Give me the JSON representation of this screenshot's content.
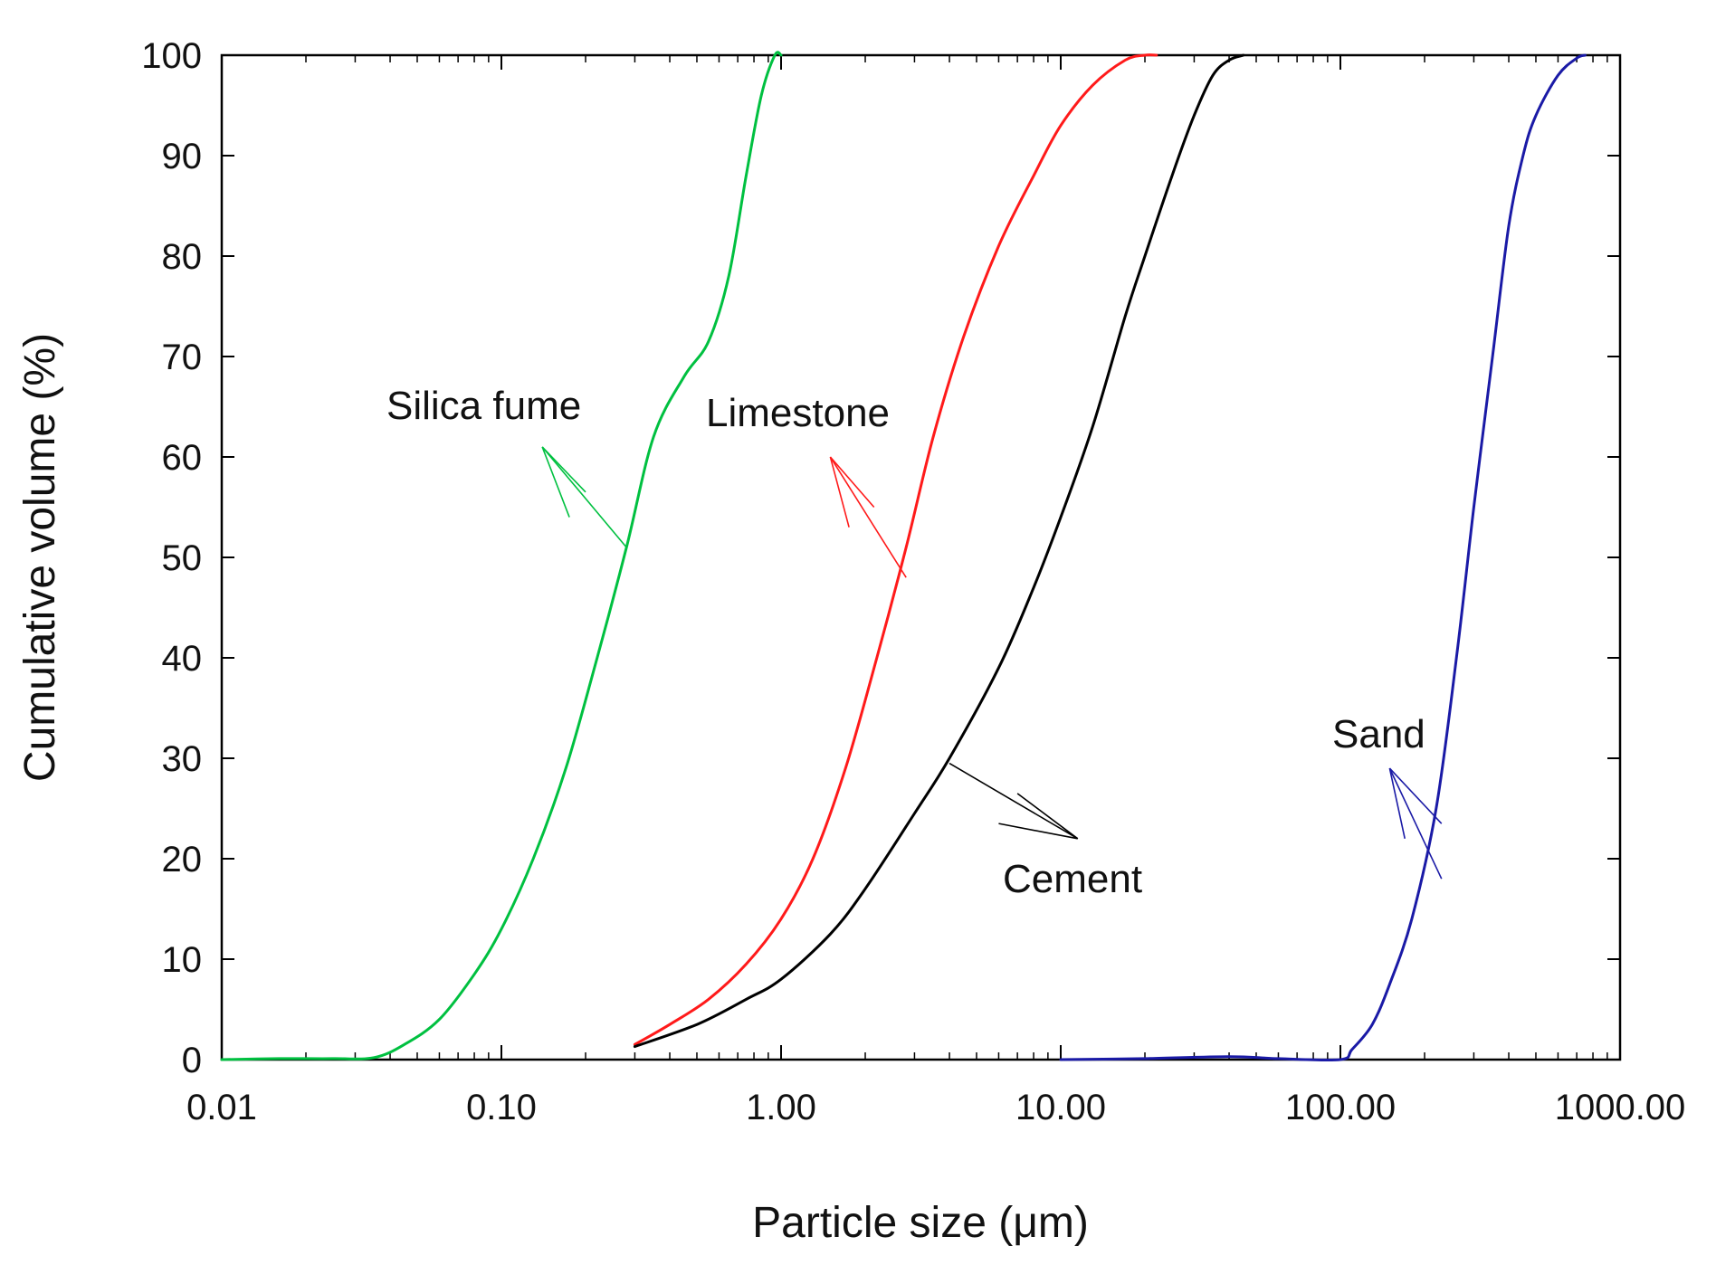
{
  "chart_data": {
    "type": "line",
    "title": "",
    "xlabel": "Particle size (μm)",
    "ylabel": "Cumulative volume (%)",
    "xscale": "log",
    "xlim": [
      0.01,
      1000
    ],
    "ylim": [
      0,
      100
    ],
    "grid": false,
    "xticks": [
      {
        "value": 0.01,
        "label": "0.01"
      },
      {
        "value": 0.1,
        "label": "0.10"
      },
      {
        "value": 1,
        "label": "1.00"
      },
      {
        "value": 10,
        "label": "10.00"
      },
      {
        "value": 100,
        "label": "100.00"
      },
      {
        "value": 1000,
        "label": "1000.00"
      }
    ],
    "yticks": [
      0,
      10,
      20,
      30,
      40,
      50,
      60,
      70,
      80,
      90,
      100
    ],
    "series": [
      {
        "name": "Silica fume",
        "color": "#00c040",
        "x": [
          0.01,
          0.016,
          0.025,
          0.035,
          0.045,
          0.06,
          0.08,
          0.1,
          0.13,
          0.17,
          0.22,
          0.28,
          0.35,
          0.45,
          0.55,
          0.65,
          0.75,
          0.85,
          0.95,
          1.0
        ],
        "y": [
          0,
          0.1,
          0.1,
          0.2,
          1.5,
          4,
          8.5,
          13,
          20,
          29,
          40,
          51,
          62,
          68,
          71.5,
          78,
          88,
          96,
          100,
          100
        ]
      },
      {
        "name": "Limestone",
        "color": "#ff1a1a",
        "x": [
          0.3,
          0.4,
          0.55,
          0.75,
          1.0,
          1.3,
          1.7,
          2.2,
          2.8,
          3.5,
          4.5,
          6.0,
          8.0,
          10.0,
          13.0,
          17.0,
          20.0,
          22.0
        ],
        "y": [
          1.5,
          3.5,
          6,
          9.5,
          14,
          20,
          29,
          40,
          51,
          62,
          72,
          81,
          88,
          93,
          97,
          99.5,
          100,
          100
        ]
      },
      {
        "name": "Cement",
        "color": "#000000",
        "x": [
          0.3,
          0.5,
          0.75,
          1.0,
          1.5,
          2.0,
          3.0,
          4.0,
          6.0,
          8.0,
          10.0,
          13.0,
          17.0,
          20.0,
          25.0,
          30.0,
          35.0,
          40.0,
          45.0
        ],
        "y": [
          1.3,
          3.5,
          6,
          8,
          12.5,
          17,
          24.5,
          30,
          39,
          47,
          54,
          63,
          74,
          80,
          88,
          94,
          98,
          99.5,
          100
        ]
      },
      {
        "name": "Sand",
        "color": "#1a1aa6",
        "x": [
          10,
          20,
          40,
          60,
          100,
          110,
          130,
          150,
          180,
          220,
          260,
          300,
          350,
          400,
          450,
          500,
          600,
          700,
          750
        ],
        "y": [
          0,
          0.1,
          0.3,
          0.1,
          0,
          1,
          3.5,
          7.5,
          14,
          25,
          40,
          55,
          70,
          83,
          90,
          94,
          98,
          99.7,
          100
        ]
      }
    ],
    "annotations": [
      {
        "label": "Silica fume",
        "series": "Silica fume"
      },
      {
        "label": "Limestone",
        "series": "Limestone"
      },
      {
        "label": "Cement",
        "series": "Cement"
      },
      {
        "label": "Sand",
        "series": "Sand"
      }
    ]
  }
}
